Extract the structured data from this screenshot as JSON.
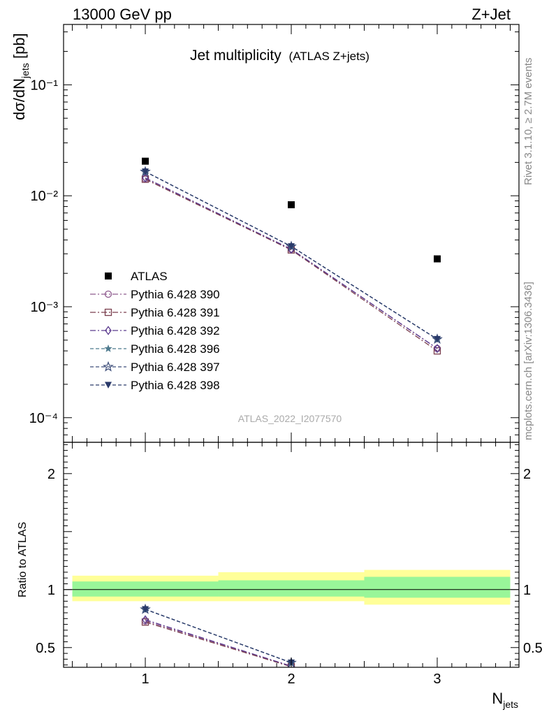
{
  "header": {
    "left": "13000 GeV pp",
    "right": "Z+Jet"
  },
  "side_text": {
    "top": "Rivet 3.1.10, ≥ 2.7M events",
    "bottom": "mcplots.cern.ch [arXiv:1306.3436]"
  },
  "watermark": "ATLAS_2022_I2077570",
  "colors": {
    "p390": "#8e5a8e",
    "p391": "#7a3e4e",
    "p392": "#5b3a8e",
    "p396": "#4e7a8e",
    "p397": "#3e4e7a",
    "p398": "#2a3a6a",
    "band_inner": "#99f699",
    "band_outer": "#ffff99"
  },
  "chart_data": [
    {
      "type": "scatter",
      "title": "Jet multiplicity",
      "title_suffix": "(ATLAS Z+jets)",
      "ylabel": "dσ/dN_jets [pb]",
      "yscale": "log",
      "ylim": [
        6e-05,
        0.35
      ],
      "xlim": [
        0.44,
        3.56
      ],
      "x": [
        1,
        2,
        3
      ],
      "ytick_labels": [
        "10⁻⁴",
        "10⁻³",
        "10⁻²",
        "10⁻¹"
      ],
      "series": [
        {
          "name": "ATLAS",
          "marker": "square",
          "values": [
            0.0205,
            0.0083,
            0.0027
          ]
        },
        {
          "name": "Pythia 6.428 390",
          "marker": "circle",
          "values": [
            0.0142,
            0.0033,
            0.00042
          ]
        },
        {
          "name": "Pythia 6.428 391",
          "marker": "square-open",
          "values": [
            0.0141,
            0.00325,
            0.0004
          ]
        },
        {
          "name": "Pythia 6.428 392",
          "marker": "diamond",
          "values": [
            0.0145,
            0.0033,
            0.00042
          ]
        },
        {
          "name": "Pythia 6.428 396",
          "marker": "star-filled",
          "values": [
            0.0165,
            0.0035,
            0.00051
          ]
        },
        {
          "name": "Pythia 6.428 397",
          "marker": "star-open",
          "values": [
            0.0165,
            0.0035,
            0.00051
          ]
        },
        {
          "name": "Pythia 6.428 398",
          "marker": "triangle-down",
          "values": [
            0.0165,
            0.0035,
            0.00051
          ]
        }
      ],
      "legend_position": "lower-left"
    },
    {
      "type": "line",
      "ylabel": "Ratio to ATLAS",
      "xlabel": "N_jets",
      "ylim": [
        0.33,
        2.27
      ],
      "yticks": [
        0.5,
        1,
        2
      ],
      "xticks": [
        1,
        2,
        3
      ],
      "bands": [
        {
          "x0": 0.5,
          "x1": 1.5,
          "inner": [
            0.94,
            1.07
          ],
          "outer": [
            0.9,
            1.12
          ]
        },
        {
          "x0": 1.5,
          "x1": 2.5,
          "inner": [
            0.94,
            1.08
          ],
          "outer": [
            0.9,
            1.15
          ]
        },
        {
          "x0": 2.5,
          "x1": 3.5,
          "inner": [
            0.93,
            1.11
          ],
          "outer": [
            0.87,
            1.17
          ]
        }
      ],
      "series": [
        {
          "name": "Pythia 6.428 390",
          "values": [
            0.73,
            0.34
          ]
        },
        {
          "name": "Pythia 6.428 391",
          "values": [
            0.72,
            0.335
          ]
        },
        {
          "name": "Pythia 6.428 392",
          "values": [
            0.74,
            0.34
          ]
        },
        {
          "name": "Pythia 6.428 396",
          "values": [
            0.83,
            0.37
          ]
        },
        {
          "name": "Pythia 6.428 397",
          "values": [
            0.83,
            0.37
          ]
        },
        {
          "name": "Pythia 6.428 398",
          "values": [
            0.83,
            0.37
          ]
        }
      ]
    }
  ]
}
